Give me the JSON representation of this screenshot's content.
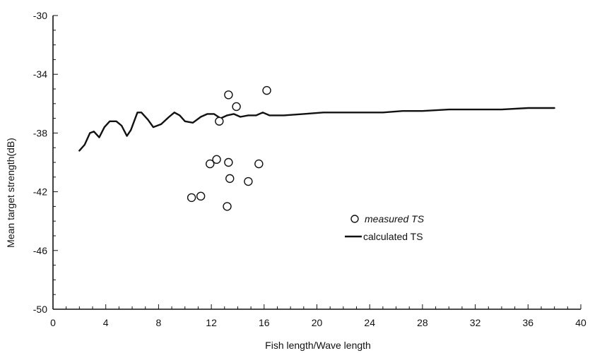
{
  "chart_data": {
    "type": "line",
    "title": "",
    "xlabel": "Fish length/Wave length",
    "ylabel": "Mean target strength(dB)",
    "xlim": [
      0,
      40
    ],
    "ylim": [
      -50,
      -30
    ],
    "x_ticks": [
      0,
      4,
      8,
      12,
      16,
      20,
      24,
      28,
      32,
      36,
      40
    ],
    "y_ticks": [
      -30,
      -34,
      -38,
      -42,
      -46,
      -50
    ],
    "grid": false,
    "legend_position": "center-right",
    "series": [
      {
        "name": "measured TS",
        "kind": "scatter",
        "marker": "open-circle",
        "points": [
          [
            13.3,
            -35.4
          ],
          [
            16.2,
            -35.1
          ],
          [
            13.9,
            -36.2
          ],
          [
            12.6,
            -37.2
          ],
          [
            12.4,
            -39.8
          ],
          [
            11.9,
            -40.1
          ],
          [
            13.3,
            -40.0
          ],
          [
            15.6,
            -40.1
          ],
          [
            13.4,
            -41.1
          ],
          [
            14.8,
            -41.3
          ],
          [
            10.5,
            -42.4
          ],
          [
            11.2,
            -42.3
          ],
          [
            13.2,
            -43.0
          ]
        ]
      },
      {
        "name": "calculated TS",
        "kind": "line",
        "points": [
          [
            2.0,
            -39.2
          ],
          [
            2.4,
            -38.8
          ],
          [
            2.8,
            -38.0
          ],
          [
            3.1,
            -37.9
          ],
          [
            3.5,
            -38.3
          ],
          [
            3.9,
            -37.6
          ],
          [
            4.3,
            -37.2
          ],
          [
            4.8,
            -37.2
          ],
          [
            5.2,
            -37.5
          ],
          [
            5.6,
            -38.2
          ],
          [
            5.9,
            -37.8
          ],
          [
            6.4,
            -36.6
          ],
          [
            6.7,
            -36.6
          ],
          [
            7.2,
            -37.1
          ],
          [
            7.6,
            -37.6
          ],
          [
            8.2,
            -37.4
          ],
          [
            8.8,
            -36.9
          ],
          [
            9.2,
            -36.6
          ],
          [
            9.6,
            -36.8
          ],
          [
            10.0,
            -37.2
          ],
          [
            10.6,
            -37.3
          ],
          [
            11.2,
            -36.9
          ],
          [
            11.7,
            -36.7
          ],
          [
            12.2,
            -36.7
          ],
          [
            12.7,
            -37.0
          ],
          [
            13.2,
            -36.8
          ],
          [
            13.7,
            -36.7
          ],
          [
            14.2,
            -36.9
          ],
          [
            14.8,
            -36.8
          ],
          [
            15.4,
            -36.8
          ],
          [
            15.9,
            -36.6
          ],
          [
            16.4,
            -36.8
          ],
          [
            17.5,
            -36.8
          ],
          [
            19.0,
            -36.7
          ],
          [
            20.5,
            -36.6
          ],
          [
            22.0,
            -36.6
          ],
          [
            23.5,
            -36.6
          ],
          [
            25.0,
            -36.6
          ],
          [
            26.5,
            -36.5
          ],
          [
            28.0,
            -36.5
          ],
          [
            30.0,
            -36.4
          ],
          [
            32.0,
            -36.4
          ],
          [
            34.0,
            -36.4
          ],
          [
            36.0,
            -36.3
          ],
          [
            38.0,
            -36.3
          ]
        ]
      }
    ],
    "colors": {
      "axis": "#111111",
      "line": "#111111",
      "marker_stroke": "#111111",
      "marker_fill": "#ffffff"
    }
  }
}
